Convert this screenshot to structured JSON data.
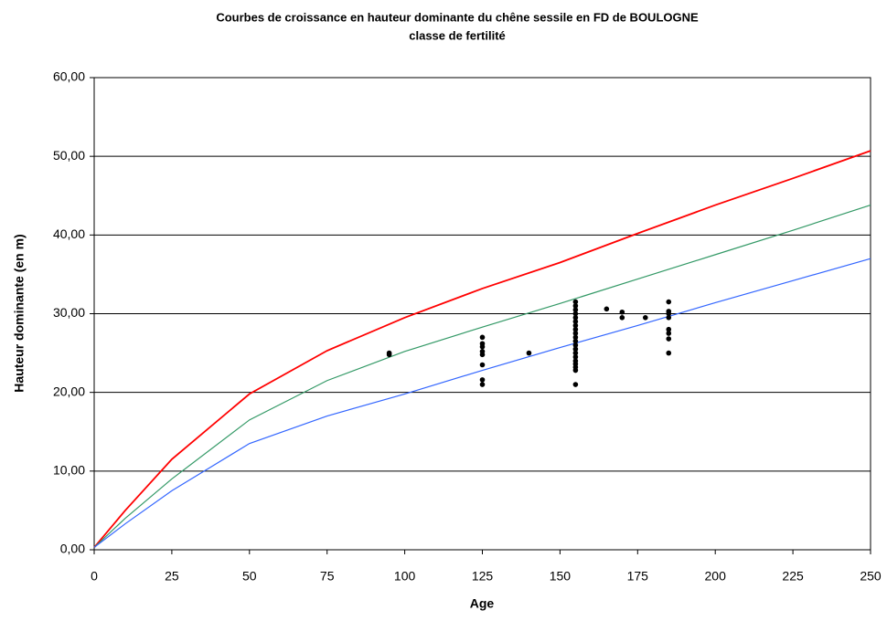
{
  "chart_data": {
    "type": "line",
    "title": "Courbes de croissance en hauteur dominante du chêne sessile en FD de BOULOGNE",
    "subtitle": "classe de fertilité",
    "x_label": "Age",
    "y_label": "Hauteur dominante (en m)",
    "xlim": [
      0,
      250
    ],
    "ylim": [
      0,
      60
    ],
    "xticks": [
      0,
      25,
      50,
      75,
      100,
      125,
      150,
      175,
      200,
      225,
      250
    ],
    "yticks": [
      {
        "value": 0,
        "label": "0,00"
      },
      {
        "value": 10,
        "label": "10,00"
      },
      {
        "value": 20,
        "label": "20,00"
      },
      {
        "value": 30,
        "label": "30,00"
      },
      {
        "value": 40,
        "label": "40,00"
      },
      {
        "value": 50,
        "label": "50,00"
      },
      {
        "value": 60,
        "label": "60,00"
      }
    ],
    "grid": true,
    "x": [
      0,
      10,
      25,
      50,
      75,
      100,
      125,
      150,
      175,
      200,
      225,
      250
    ],
    "series": [
      {
        "color": "#ff0000",
        "values": [
          0.3,
          5.0,
          11.5,
          19.8,
          25.3,
          29.5,
          33.2,
          36.5,
          40.2,
          43.8,
          47.2,
          50.7
        ]
      },
      {
        "color": "#339966",
        "values": [
          0.3,
          4.0,
          9.0,
          16.5,
          21.5,
          25.2,
          28.3,
          31.3,
          34.4,
          37.5,
          40.6,
          43.8
        ]
      },
      {
        "color": "#3366ff",
        "values": [
          0.3,
          3.3,
          7.5,
          13.5,
          17.0,
          19.8,
          22.8,
          25.7,
          28.5,
          31.4,
          34.2,
          37.0
        ]
      },
      {
        "type": "scatter",
        "color": "#000000",
        "x": [
          95,
          95,
          125,
          125,
          125,
          125,
          125,
          125,
          125,
          125,
          140,
          155,
          155,
          155,
          155,
          155,
          155,
          155,
          155,
          155,
          155,
          155,
          155,
          155,
          155,
          155,
          155,
          155,
          155,
          155,
          155,
          165,
          170,
          170,
          177.5,
          185,
          185,
          185,
          185,
          185,
          185,
          185,
          185
        ],
        "values": [
          24.8,
          25.0,
          21.0,
          21.6,
          23.5,
          24.8,
          25.2,
          25.8,
          26.2,
          27.0,
          25.0,
          21.0,
          22.8,
          23.2,
          23.6,
          24.0,
          24.5,
          25.0,
          25.5,
          26.0,
          26.5,
          27.0,
          27.5,
          28.0,
          28.5,
          29.0,
          29.5,
          30.0,
          30.5,
          31.0,
          31.5,
          30.6,
          29.5,
          30.2,
          29.5,
          25.0,
          26.8,
          27.5,
          28.0,
          29.5,
          30.0,
          30.3,
          31.5
        ]
      }
    ]
  }
}
